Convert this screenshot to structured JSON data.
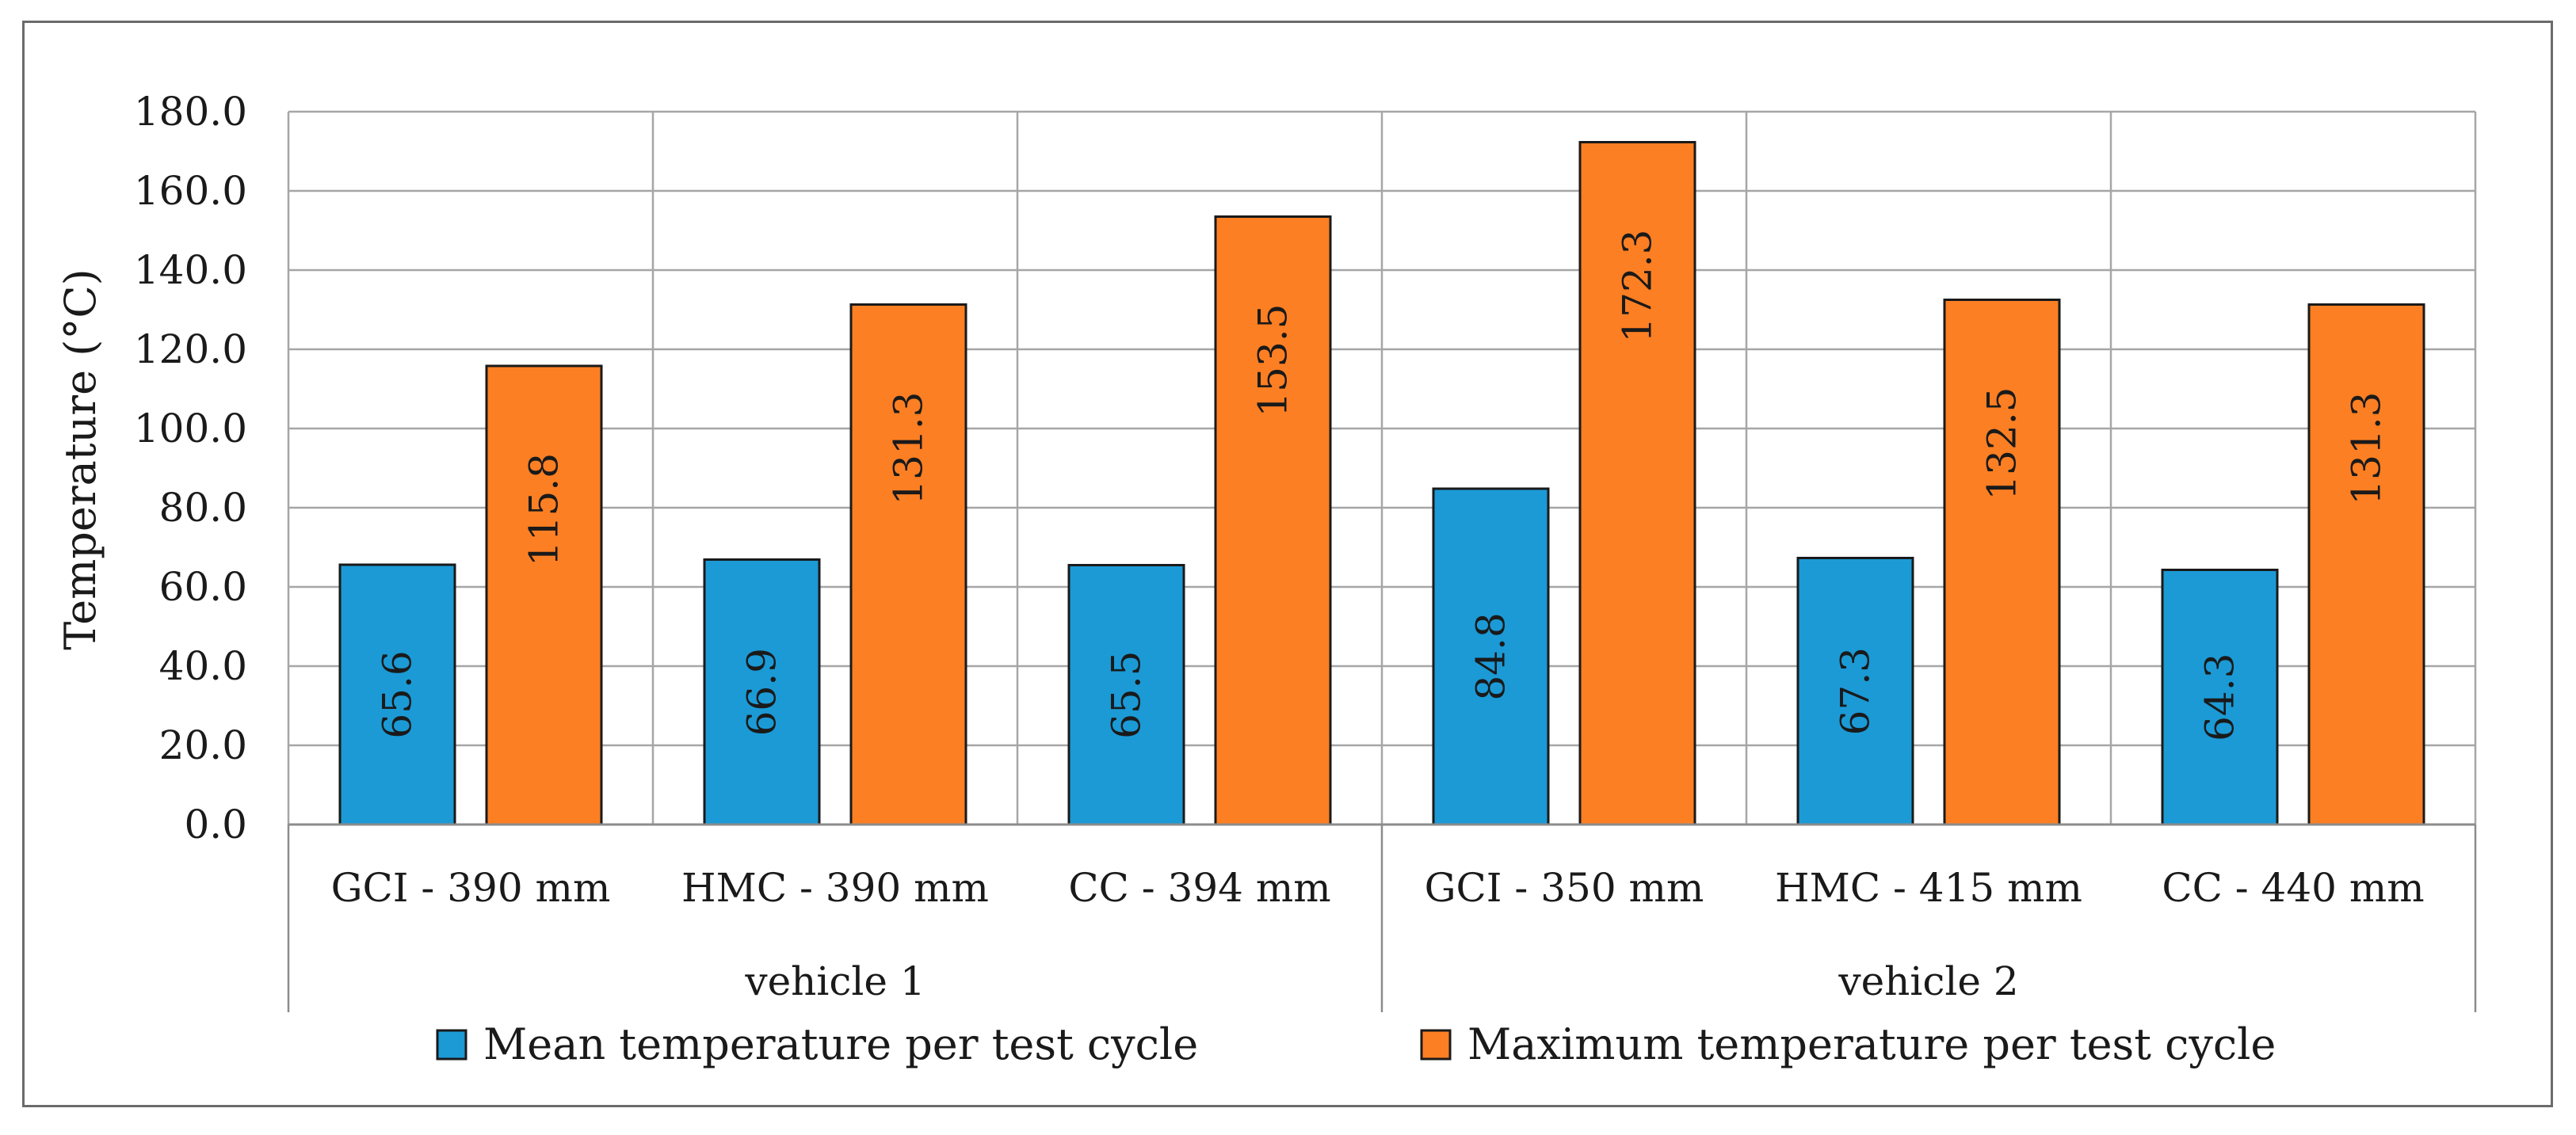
{
  "chart_data": {
    "type": "bar",
    "title": "",
    "ylabel": "Temperature (°C)",
    "xlabel": "",
    "ylim": [
      0,
      180
    ],
    "yticks": [
      0,
      20,
      40,
      60,
      80,
      100,
      120,
      140,
      160,
      180
    ],
    "grid": true,
    "legend_position": "bottom",
    "groups": [
      {
        "label": "vehicle 1",
        "categories": [
          "GCI - 390 mm",
          "HMC - 390 mm",
          "CC - 394 mm"
        ]
      },
      {
        "label": "vehicle 2",
        "categories": [
          "GCI - 350 mm",
          "HMC - 415 mm",
          "CC - 440 mm"
        ]
      }
    ],
    "categories": [
      "GCI - 390 mm",
      "HMC - 390 mm",
      "CC - 394 mm",
      "GCI - 350 mm",
      "HMC - 415 mm",
      "CC - 440 mm"
    ],
    "series": [
      {
        "name": "Mean temperature per test cycle",
        "color": "#1b9ad6",
        "values": [
          65.6,
          66.9,
          65.5,
          84.8,
          67.3,
          64.3
        ]
      },
      {
        "name": "Maximum temperature per test cycle",
        "color": "#fd7f23",
        "values": [
          115.8,
          131.3,
          153.5,
          172.3,
          132.5,
          131.3
        ]
      }
    ]
  }
}
